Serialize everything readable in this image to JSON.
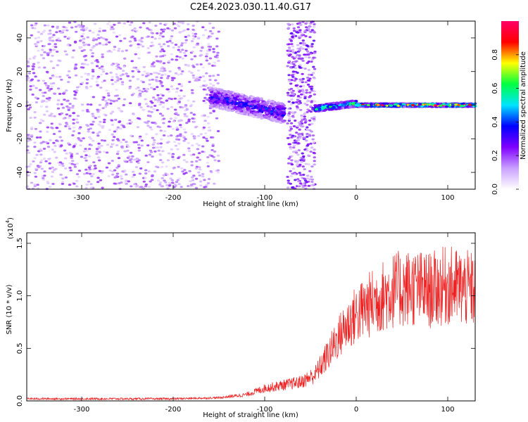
{
  "title": "C2E4.2023.030.11.40.G17",
  "chart_data": [
    {
      "type": "heatmap",
      "xlabel": "Height of straight line (km)",
      "ylabel": "Frequency (Hz)",
      "xlim": [
        -360,
        130
      ],
      "ylim": [
        -50,
        50
      ],
      "x_ticks": [
        -300,
        -200,
        -100,
        0,
        100
      ],
      "x_tick_labels": [
        "-300",
        "-200",
        "-100",
        "0",
        "100"
      ],
      "y_ticks": [
        -40,
        -20,
        0,
        20,
        40
      ],
      "y_tick_labels": [
        "-40",
        "-20",
        "0",
        "20",
        "40"
      ],
      "colorbar": {
        "label": "Normalized spectral amplitude",
        "range": [
          0,
          1
        ],
        "ticks": [
          0.0,
          0.2,
          0.4,
          0.6,
          0.8
        ],
        "tick_labels": [
          "0.0",
          "0.2",
          "0.4",
          "0.6",
          "0.8"
        ],
        "colors": [
          "#ffffff",
          "#c9a0ff",
          "#7f00ff",
          "#0000ff",
          "#00e5ff",
          "#00ff40",
          "#ffff00",
          "#ff0000",
          "#ff0066"
        ]
      },
      "regions": [
        {
          "x": [
            -360,
            -150
          ],
          "description": "broadband noise, amplitude ~0.1-0.2",
          "level": 0.15
        },
        {
          "x": [
            -160,
            -78
          ],
          "center_hz": [
            5,
            -5
          ],
          "half_width_hz": 6,
          "level": 0.35
        },
        {
          "x": [
            -75,
            -45
          ],
          "description": "full-band burst",
          "level": 0.2
        },
        {
          "x": [
            -45,
            0
          ],
          "center_hz": [
            -2,
            1
          ],
          "half_width_hz": 2,
          "level": 0.6
        },
        {
          "x": [
            0,
            130
          ],
          "center_hz": [
            0,
            0
          ],
          "half_width_hz": 1,
          "level": 0.85
        }
      ],
      "grid": false
    },
    {
      "type": "line",
      "xlabel": "Height of straight line (km)",
      "ylabel": "SNR (10 * v/v)",
      "y_scale_label": "(x10",
      "y_scale_exponent": "4",
      "y_scale_suffix": ")",
      "xlim": [
        -360,
        130
      ],
      "ylim": [
        0,
        1.6
      ],
      "x_ticks": [
        -300,
        -200,
        -100,
        0,
        100
      ],
      "x_tick_labels": [
        "-300",
        "-200",
        "-100",
        "0",
        "100"
      ],
      "y_ticks": [
        0.0,
        0.5,
        1.0,
        1.5
      ],
      "y_tick_labels": [
        "0.0",
        "0.5",
        "1.0",
        "1.5"
      ],
      "color": "#ee2222",
      "trend": {
        "x": [
          -360,
          -200,
          -150,
          -120,
          -100,
          -80,
          -60,
          -45,
          -30,
          -20,
          -10,
          0,
          20,
          40,
          60,
          80,
          100,
          130
        ],
        "y": [
          0.02,
          0.02,
          0.03,
          0.06,
          0.12,
          0.15,
          0.18,
          0.25,
          0.45,
          0.6,
          0.72,
          0.82,
          0.95,
          1.05,
          1.08,
          1.05,
          1.1,
          1.05
        ]
      },
      "grid": false
    }
  ]
}
